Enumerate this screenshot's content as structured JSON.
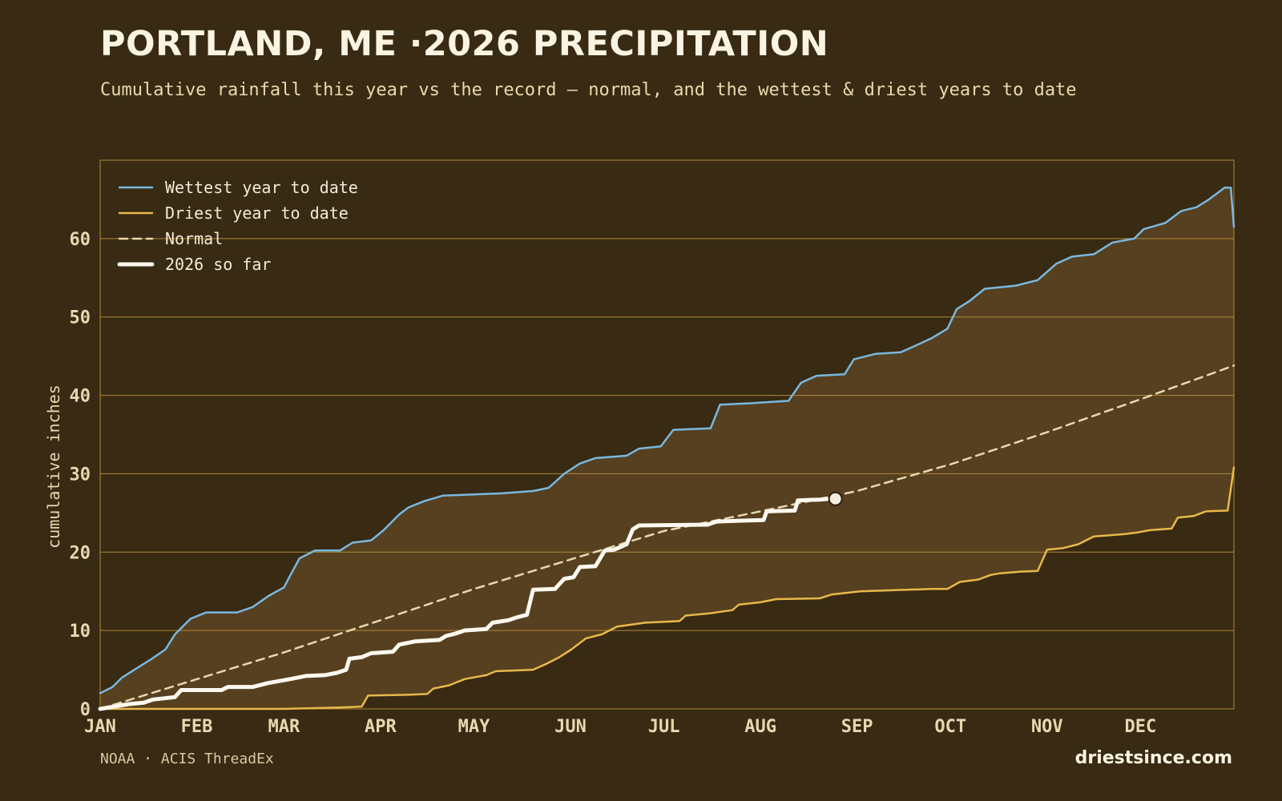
{
  "header": {
    "title": "PORTLAND, ME ·2026 PRECIPITATION",
    "subtitle": "Cumulative rainfall this year vs the record — normal, and the wettest & driest years to date"
  },
  "footer": {
    "source": "NOAA · ACIS ThreadEx",
    "brand": "driestsince.com"
  },
  "colors": {
    "background": "#382a13",
    "band_fill": "#56401f",
    "grid": "#b08a3a",
    "wettest": "#7ab8e0",
    "driest": "#e8b84a",
    "normal": "#e8d8b0",
    "current": "#fbf8ef"
  },
  "chart_data": {
    "type": "line",
    "title": "PORTLAND, ME ·2026 PRECIPITATION",
    "xlabel": "",
    "ylabel": "cumulative inches",
    "x_unit": "day of year",
    "xlim": [
      1,
      365
    ],
    "ylim": [
      0,
      70
    ],
    "grid": true,
    "legend_position": "top-left",
    "month_ticks": [
      {
        "label": "JAN",
        "day": 1
      },
      {
        "label": "FEB",
        "day": 32
      },
      {
        "label": "MAR",
        "day": 60
      },
      {
        "label": "APR",
        "day": 91
      },
      {
        "label": "MAY",
        "day": 121
      },
      {
        "label": "JUN",
        "day": 152
      },
      {
        "label": "JUL",
        "day": 182
      },
      {
        "label": "AUG",
        "day": 213
      },
      {
        "label": "SEP",
        "day": 244
      },
      {
        "label": "OCT",
        "day": 274
      },
      {
        "label": "NOV",
        "day": 305
      },
      {
        "label": "DEC",
        "day": 335
      }
    ],
    "y_ticks": [
      0,
      10,
      20,
      30,
      40,
      50,
      60
    ],
    "shaded_band": "between wettest and driest",
    "series": [
      {
        "name": "Wettest year to date",
        "style": "solid",
        "points": [
          [
            1,
            2.0
          ],
          [
            5,
            2.8
          ],
          [
            8,
            4.0
          ],
          [
            12,
            5.0
          ],
          [
            18,
            6.5
          ],
          [
            22,
            7.6
          ],
          [
            25,
            9.5
          ],
          [
            30,
            11.5
          ],
          [
            35,
            12.3
          ],
          [
            45,
            12.3
          ],
          [
            50,
            13.0
          ],
          [
            55,
            14.4
          ],
          [
            60,
            15.5
          ],
          [
            62,
            17.0
          ],
          [
            65,
            19.2
          ],
          [
            70,
            20.2
          ],
          [
            78,
            20.2
          ],
          [
            82,
            21.2
          ],
          [
            88,
            21.5
          ],
          [
            92,
            22.8
          ],
          [
            97,
            24.8
          ],
          [
            100,
            25.7
          ],
          [
            105,
            26.5
          ],
          [
            111,
            27.2
          ],
          [
            130,
            27.5
          ],
          [
            140,
            27.8
          ],
          [
            145,
            28.2
          ],
          [
            150,
            30.0
          ],
          [
            155,
            31.3
          ],
          [
            160,
            32.0
          ],
          [
            170,
            32.3
          ],
          [
            174,
            33.2
          ],
          [
            181,
            33.5
          ],
          [
            185,
            35.6
          ],
          [
            197,
            35.8
          ],
          [
            200,
            38.8
          ],
          [
            210,
            39.0
          ],
          [
            222,
            39.3
          ],
          [
            226,
            41.6
          ],
          [
            231,
            42.5
          ],
          [
            240,
            42.7
          ],
          [
            243,
            44.6
          ],
          [
            250,
            45.3
          ],
          [
            258,
            45.5
          ],
          [
            262,
            46.2
          ],
          [
            268,
            47.3
          ],
          [
            273,
            48.5
          ],
          [
            276,
            51.0
          ],
          [
            280,
            52.0
          ],
          [
            285,
            53.6
          ],
          [
            295,
            54.0
          ],
          [
            302,
            54.7
          ],
          [
            308,
            56.8
          ],
          [
            313,
            57.7
          ],
          [
            320,
            58.0
          ],
          [
            326,
            59.5
          ],
          [
            333,
            60.0
          ],
          [
            336,
            61.2
          ],
          [
            343,
            62.0
          ],
          [
            348,
            63.5
          ],
          [
            353,
            64.0
          ],
          [
            357,
            65.0
          ],
          [
            362,
            66.5
          ],
          [
            364,
            66.5
          ],
          [
            365,
            61.5
          ]
        ]
      },
      {
        "name": "Driest year to date",
        "style": "solid",
        "points": [
          [
            1,
            0.0
          ],
          [
            60,
            0.0
          ],
          [
            80,
            0.2
          ],
          [
            85,
            0.3
          ],
          [
            87,
            1.7
          ],
          [
            100,
            1.8
          ],
          [
            106,
            1.9
          ],
          [
            108,
            2.6
          ],
          [
            113,
            3.0
          ],
          [
            118,
            3.8
          ],
          [
            125,
            4.3
          ],
          [
            128,
            4.8
          ],
          [
            140,
            5.0
          ],
          [
            144,
            5.7
          ],
          [
            148,
            6.5
          ],
          [
            152,
            7.5
          ],
          [
            157,
            9.0
          ],
          [
            162,
            9.5
          ],
          [
            167,
            10.5
          ],
          [
            176,
            11.0
          ],
          [
            187,
            11.2
          ],
          [
            189,
            11.9
          ],
          [
            197,
            12.2
          ],
          [
            204,
            12.6
          ],
          [
            206,
            13.3
          ],
          [
            213,
            13.6
          ],
          [
            218,
            14.0
          ],
          [
            232,
            14.1
          ],
          [
            236,
            14.6
          ],
          [
            245,
            15.0
          ],
          [
            260,
            15.2
          ],
          [
            268,
            15.3
          ],
          [
            273,
            15.3
          ],
          [
            277,
            16.2
          ],
          [
            283,
            16.5
          ],
          [
            287,
            17.1
          ],
          [
            290,
            17.3
          ],
          [
            296,
            17.5
          ],
          [
            302,
            17.6
          ],
          [
            305,
            20.3
          ],
          [
            310,
            20.5
          ],
          [
            315,
            21.0
          ],
          [
            320,
            22.0
          ],
          [
            330,
            22.3
          ],
          [
            334,
            22.5
          ],
          [
            338,
            22.8
          ],
          [
            345,
            23.0
          ],
          [
            347,
            24.4
          ],
          [
            352,
            24.6
          ],
          [
            356,
            25.2
          ],
          [
            363,
            25.3
          ],
          [
            365,
            30.8
          ]
        ]
      },
      {
        "name": "Normal",
        "style": "dashed",
        "points": [
          [
            1,
            0.0
          ],
          [
            60,
            7.2
          ],
          [
            121,
            15.3
          ],
          [
            182,
            22.7
          ],
          [
            213,
            25.2
          ],
          [
            244,
            27.8
          ],
          [
            274,
            31.2
          ],
          [
            305,
            35.3
          ],
          [
            335,
            39.5
          ],
          [
            365,
            43.8
          ]
        ]
      },
      {
        "name": "2026 so far",
        "style": "solid-thick",
        "points": [
          [
            1,
            0.0
          ],
          [
            10,
            0.6
          ],
          [
            15,
            0.8
          ],
          [
            18,
            1.2
          ],
          [
            25,
            1.5
          ],
          [
            27,
            2.4
          ],
          [
            40,
            2.4
          ],
          [
            42,
            2.8
          ],
          [
            50,
            2.8
          ],
          [
            55,
            3.3
          ],
          [
            62,
            3.8
          ],
          [
            67,
            4.2
          ],
          [
            73,
            4.3
          ],
          [
            77,
            4.6
          ],
          [
            80,
            5.0
          ],
          [
            81,
            6.4
          ],
          [
            85,
            6.6
          ],
          [
            88,
            7.1
          ],
          [
            95,
            7.3
          ],
          [
            97,
            8.2
          ],
          [
            102,
            8.6
          ],
          [
            110,
            8.8
          ],
          [
            112,
            9.3
          ],
          [
            115,
            9.6
          ],
          [
            118,
            10.0
          ],
          [
            125,
            10.2
          ],
          [
            127,
            11.0
          ],
          [
            132,
            11.3
          ],
          [
            135,
            11.7
          ],
          [
            138,
            12.0
          ],
          [
            140,
            15.2
          ],
          [
            147,
            15.3
          ],
          [
            150,
            16.6
          ],
          [
            153,
            16.8
          ],
          [
            155,
            18.1
          ],
          [
            160,
            18.2
          ],
          [
            163,
            20.2
          ],
          [
            166,
            20.3
          ],
          [
            170,
            21.0
          ],
          [
            172,
            22.9
          ],
          [
            174,
            23.4
          ],
          [
            196,
            23.5
          ],
          [
            199,
            23.9
          ],
          [
            206,
            24.0
          ],
          [
            214,
            24.1
          ],
          [
            215,
            25.2
          ],
          [
            224,
            25.3
          ],
          [
            225,
            26.6
          ],
          [
            232,
            26.7
          ],
          [
            235,
            26.8
          ]
        ]
      }
    ]
  }
}
